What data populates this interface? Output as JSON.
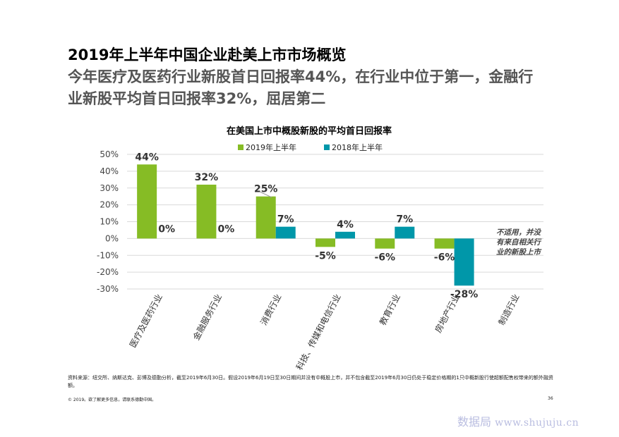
{
  "header": {
    "title": "2019年上半年中国企业赴美上市市场概览",
    "subtitle": "今年医疗及医药行业新股首日回报率44%，在行业中位于第一，金融行业新股平均首日回报率32%，屈居第二"
  },
  "chart_data": {
    "type": "bar",
    "title": "在美国上市中概股新股的平均首日回报率",
    "categories": [
      "医疗及医药行业",
      "金融服务行业",
      "消费行业",
      "科技、传媒和电信行业",
      "教育行业",
      "房地产行业",
      "制造行业"
    ],
    "series": [
      {
        "name": "2019年上半年",
        "values": [
          44,
          32,
          25,
          -5,
          -6,
          -6,
          null
        ],
        "labels": [
          "44%",
          "32%",
          "25%",
          "-5%",
          "-6%",
          "-6%",
          ""
        ]
      },
      {
        "name": "2018年上半年",
        "values": [
          0,
          0,
          7,
          4,
          7,
          -28,
          null
        ],
        "labels": [
          "0%",
          "0%",
          "7%",
          "4%",
          "7%",
          "-28%",
          ""
        ]
      }
    ],
    "y_ticks": [
      "50%",
      "40%",
      "30%",
      "20%",
      "10%",
      "0%",
      "-10%",
      "-20%",
      "-30%"
    ],
    "ylim": [
      -30,
      50
    ],
    "grid": true,
    "legend_position": "top",
    "annotation": "不适用，并没有来自相关行业的新股上市",
    "colors": {
      "series_2019": "#86BC25",
      "series_2018": "#0097A9"
    }
  },
  "footer": {
    "source": "资料来源：纽交所、纳斯达克、彭博及德勤分析，截至2019年6月30日。假设2019年6月19日至30日期间并没有中概股上市，并不包含截至2019年6月30日仍处于稳定价格期的1只中概新股行使超额配售权带来的额外融资额。",
    "copyright": "© 2019。欲了解更多信息，请联系德勤中国。",
    "page_number": "36",
    "watermark_cn": "数据局",
    "watermark_url": "www.shujuju.cn"
  }
}
